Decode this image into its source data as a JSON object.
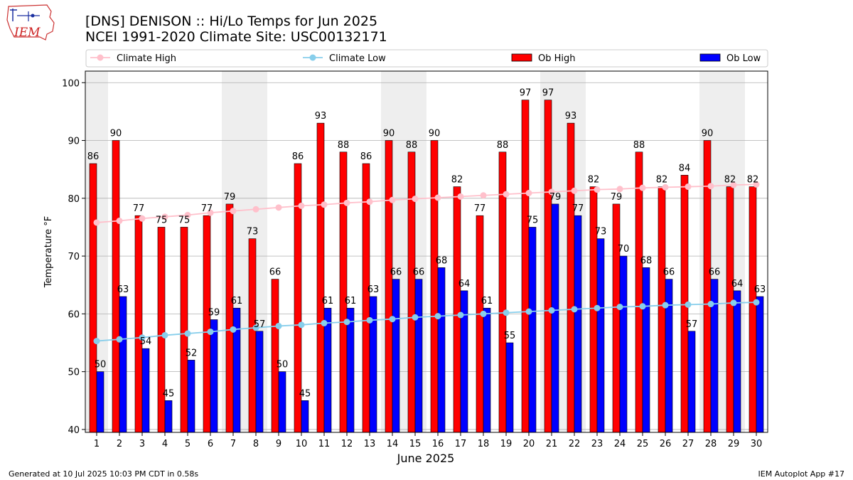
{
  "header": {
    "logo_text": "IEM",
    "title_line1": "[DNS] DENISON :: Hi/Lo Temps for Jun 2025",
    "title_line2": "NCEI 1991-2020 Climate Site: USC00132171"
  },
  "legend": {
    "climate_high": "Climate High",
    "climate_low": "Climate Low",
    "ob_high": "Ob High",
    "ob_low": "Ob Low"
  },
  "footer": {
    "generated": "Generated at 10 Jul 2025 10:03 PM CDT in 0.58s",
    "app": "IEM Autoplot App #17"
  },
  "colors": {
    "ob_high": "#ff0000",
    "ob_low": "#0000ff",
    "climate_high": "#ffc0cb",
    "climate_low": "#87ceeb",
    "weekend_shade": "#eeeeee",
    "grid": "#b0b0b0"
  },
  "chart_data": {
    "type": "bar",
    "title": "[DNS] DENISON :: Hi/Lo Temps for Jun 2025",
    "subtitle": "NCEI 1991-2020 Climate Site: USC00132171",
    "xlabel": "June 2025",
    "ylabel": "Temperature °F",
    "ylim": [
      39.5,
      102
    ],
    "yticks": [
      40,
      50,
      60,
      70,
      80,
      90,
      100
    ],
    "grid": true,
    "legend_position": "top",
    "categories": [
      "1",
      "2",
      "3",
      "4",
      "5",
      "6",
      "7",
      "8",
      "9",
      "10",
      "11",
      "12",
      "13",
      "14",
      "15",
      "16",
      "17",
      "18",
      "19",
      "20",
      "21",
      "22",
      "23",
      "24",
      "25",
      "26",
      "27",
      "28",
      "29",
      "30"
    ],
    "weekend_days": [
      1,
      7,
      8,
      14,
      15,
      21,
      22,
      28,
      29
    ],
    "series": [
      {
        "name": "Ob High",
        "kind": "bar",
        "values": [
          86,
          90,
          77,
          75,
          75,
          77,
          79,
          73,
          66,
          86,
          93,
          88,
          86,
          90,
          88,
          90,
          82,
          77,
          88,
          97,
          97,
          93,
          82,
          79,
          88,
          82,
          84,
          90,
          82,
          82
        ]
      },
      {
        "name": "Ob Low",
        "kind": "bar",
        "values": [
          50,
          63,
          54,
          45,
          52,
          59,
          61,
          57,
          50,
          45,
          61,
          61,
          63,
          66,
          66,
          68,
          64,
          61,
          55,
          75,
          79,
          77,
          73,
          70,
          68,
          66,
          57,
          66,
          64,
          63
        ]
      },
      {
        "name": "Climate High",
        "kind": "line",
        "values": [
          75.8,
          76.1,
          76.5,
          76.8,
          77.1,
          77.5,
          77.8,
          78.1,
          78.4,
          78.7,
          78.9,
          79.2,
          79.4,
          79.7,
          79.9,
          80.1,
          80.3,
          80.5,
          80.7,
          80.9,
          81.1,
          81.3,
          81.5,
          81.6,
          81.8,
          81.9,
          82.0,
          82.1,
          82.3,
          82.4
        ]
      },
      {
        "name": "Climate Low",
        "kind": "line",
        "values": [
          55.3,
          55.6,
          55.9,
          56.3,
          56.6,
          56.9,
          57.3,
          57.6,
          57.9,
          58.1,
          58.4,
          58.6,
          58.9,
          59.1,
          59.4,
          59.6,
          59.8,
          60.0,
          60.2,
          60.4,
          60.6,
          60.8,
          61.0,
          61.2,
          61.3,
          61.5,
          61.6,
          61.7,
          61.9,
          62.0
        ]
      }
    ]
  }
}
